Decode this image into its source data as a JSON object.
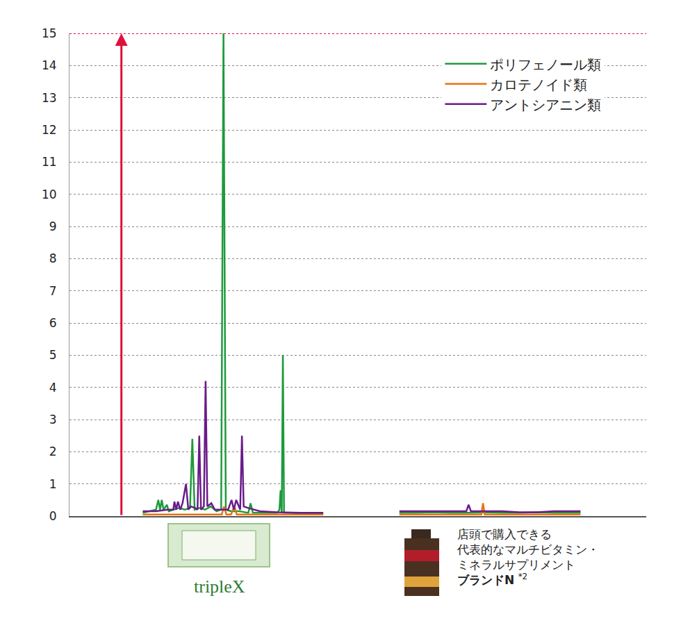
{
  "chart_data": {
    "type": "line",
    "xlim": [
      0,
      100
    ],
    "ylim": [
      0,
      15
    ],
    "yticks": [
      0,
      1,
      2,
      3,
      4,
      5,
      6,
      7,
      8,
      9,
      10,
      11,
      12,
      13,
      14,
      15
    ],
    "grid": true,
    "legend": "top-right",
    "tick_labels": "y",
    "series": [
      {
        "name": "ポリフェノール類",
        "color": "#1e9a3c",
        "x": [
          12.7,
          14.0,
          15.0,
          15.4,
          15.7,
          16.0,
          16.3,
          16.9,
          17.2,
          18.0,
          19.0,
          20.0,
          20.9,
          21.3,
          21.7,
          22.5,
          23.5,
          24.5,
          25.5,
          26.3,
          26.7,
          27.1,
          28.0,
          29.5,
          31.0,
          31.4,
          31.8,
          33.0,
          34.5,
          36.0,
          36.4,
          36.6,
          36.8,
          37.0,
          37.2,
          38.0,
          40.0,
          42.0,
          44.0,
          50,
          57.2,
          60,
          63,
          66,
          69,
          72,
          75,
          78,
          81,
          84,
          88.6
        ],
        "values": [
          0.1,
          0.15,
          0.2,
          0.5,
          0.2,
          0.5,
          0.2,
          0.35,
          0.15,
          0.2,
          0.25,
          0.2,
          0.25,
          2.4,
          0.2,
          0.25,
          0.2,
          0.3,
          0.15,
          0.2,
          15,
          0.2,
          0.15,
          0.15,
          0.1,
          0.4,
          0.1,
          0.1,
          0.1,
          0.1,
          0.2,
          0.8,
          0.1,
          5.0,
          0.1,
          0.1,
          0.08,
          0.07,
          0.07,
          null,
          0.1,
          0.1,
          0.12,
          0.1,
          0.1,
          0.12,
          0.1,
          0.1,
          0.12,
          0.1,
          0.1
        ]
      },
      {
        "name": "カロテノイド類",
        "color": "#e8730e",
        "x": [
          12.7,
          18,
          24,
          26.4,
          26.8,
          27.2,
          28,
          28.6,
          29,
          29.4,
          33,
          38,
          44,
          50,
          57.2,
          62,
          67,
          71.4,
          71.7,
          72.0,
          76,
          82,
          88.6
        ],
        "values": [
          0.05,
          0.05,
          0.05,
          0.05,
          0.3,
          0.05,
          0.05,
          0.3,
          0.05,
          0.05,
          0.05,
          0.05,
          0.05,
          null,
          0.05,
          0.05,
          0.05,
          0.05,
          0.4,
          0.05,
          0.05,
          0.05,
          0.05
        ]
      },
      {
        "name": "アントシアニン類",
        "color": "#6a1b8a",
        "x": [
          12.7,
          15.0,
          17.0,
          18.0,
          18.2,
          18.5,
          18.8,
          19.2,
          19.6,
          20.2,
          20.6,
          21.0,
          21.8,
          22.2,
          22.5,
          22.8,
          23.3,
          23.6,
          23.9,
          24.6,
          25.2,
          26.0,
          27.5,
          28.1,
          28.5,
          28.9,
          29.4,
          29.6,
          29.9,
          30.2,
          31.0,
          33.0,
          36.0,
          40.0,
          44.0,
          50,
          57.2,
          60,
          63,
          66,
          68.8,
          69.2,
          69.6,
          72,
          75,
          78,
          81,
          84,
          88.6
        ],
        "values": [
          0.15,
          0.15,
          0.2,
          0.2,
          0.45,
          0.2,
          0.45,
          0.2,
          0.4,
          1.0,
          0.2,
          0.3,
          0.25,
          0.2,
          2.5,
          0.2,
          0.3,
          4.2,
          0.3,
          0.4,
          0.2,
          0.2,
          0.2,
          0.5,
          0.2,
          0.5,
          0.3,
          0.2,
          2.5,
          0.3,
          0.25,
          0.15,
          0.12,
          0.1,
          0.1,
          null,
          0.15,
          0.15,
          0.15,
          0.15,
          0.15,
          0.35,
          0.15,
          0.15,
          0.15,
          0.12,
          0.12,
          0.15,
          0.15
        ]
      }
    ],
    "reference_line": {
      "y": 15,
      "color": "#e0103c",
      "line_style": "dotted"
    },
    "arrow": {
      "x": 9,
      "from": 0,
      "to": 15,
      "color": "#e0103c"
    },
    "annotations": [
      {
        "x": 26,
        "text": "tripleX"
      },
      {
        "x": 66.9,
        "lines": [
          "店頭で購入できる",
          "代表的なマルチビタミン・",
          "ミネラルサプリメント"
        ],
        "bold": "ブランドN",
        "note": "*2"
      }
    ]
  }
}
